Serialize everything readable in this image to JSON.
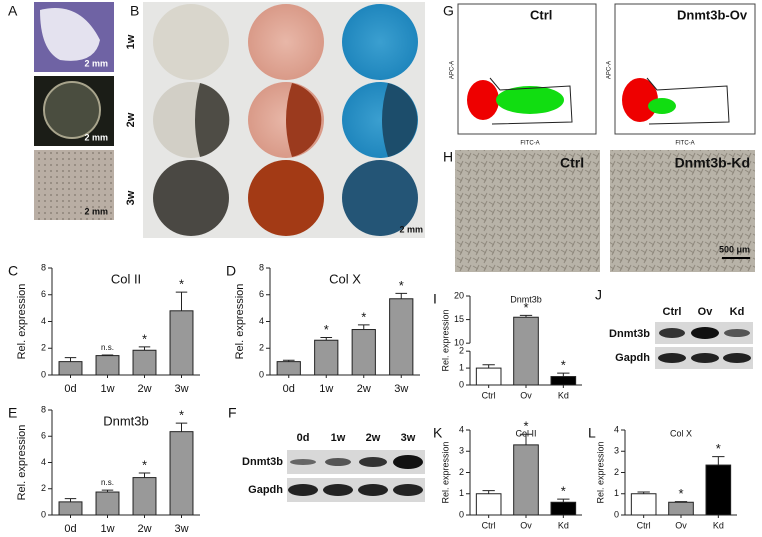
{
  "panels": {
    "A": {
      "label": "A",
      "scale_bars": [
        "2 mm",
        "2 mm",
        "2 mm"
      ]
    },
    "B": {
      "label": "B",
      "rows": [
        "1w",
        "2w",
        "3w"
      ],
      "scale_bar": "2 mm"
    },
    "G": {
      "label": "G",
      "plots": [
        {
          "title": "Ctrl",
          "x_label": "FITC-A",
          "y_label": "APC-A"
        },
        {
          "title": "Dnmt3b-Ov",
          "x_label": "FITC-A",
          "y_label": "APC-A"
        }
      ]
    },
    "H": {
      "label": "H",
      "images": [
        "Ctrl",
        "Dnmt3b-Kd"
      ],
      "scale_bar": "500 μm"
    },
    "F": {
      "label": "F",
      "lanes": [
        "0d",
        "1w",
        "2w",
        "3w"
      ],
      "bands": [
        "Dnmt3b",
        "Gapdh"
      ]
    },
    "J": {
      "label": "J",
      "lanes": [
        "Ctrl",
        "Ov",
        "Kd"
      ],
      "bands": [
        "Dnmt3b",
        "Gapdh"
      ]
    }
  },
  "chart_data": [
    {
      "type": "bar",
      "panel": "C",
      "title": "Col II",
      "y_label": "Rel. expression",
      "categories": [
        "0d",
        "1w",
        "2w",
        "3w"
      ],
      "values": [
        1,
        1.45,
        1.85,
        4.8
      ],
      "errors": [
        0.3,
        0.05,
        0.25,
        1.4
      ],
      "annotations": [
        null,
        "n.s.",
        "*",
        "*"
      ],
      "color": "#999999",
      "ylim": [
        0,
        8
      ],
      "yticks": [
        0,
        2,
        4,
        6,
        8
      ]
    },
    {
      "type": "bar",
      "panel": "D",
      "title": "Col X",
      "y_label": "Rel. expression",
      "categories": [
        "0d",
        "1w",
        "2w",
        "3w"
      ],
      "values": [
        1,
        2.6,
        3.4,
        5.7
      ],
      "errors": [
        0.1,
        0.2,
        0.35,
        0.4
      ],
      "annotations": [
        null,
        "*",
        "*",
        "*"
      ],
      "color": "#999999",
      "ylim": [
        0,
        8
      ],
      "yticks": [
        0,
        2,
        4,
        6,
        8
      ]
    },
    {
      "type": "bar",
      "panel": "E",
      "title": "Dnmt3b",
      "y_label": "Rel. expression",
      "categories": [
        "0d",
        "1w",
        "2w",
        "3w"
      ],
      "values": [
        1,
        1.75,
        2.85,
        6.35
      ],
      "errors": [
        0.25,
        0.15,
        0.35,
        0.65
      ],
      "annotations": [
        null,
        "n.s.",
        "*",
        "*"
      ],
      "color": "#999999",
      "ylim": [
        0,
        8
      ],
      "yticks": [
        0,
        2,
        4,
        6,
        8
      ]
    },
    {
      "type": "bar",
      "panel": "I",
      "title": "Dnmt3b",
      "y_label": "Rel. expression",
      "categories": [
        "Ctrl",
        "Ov",
        "Kd"
      ],
      "values": [
        1,
        15.5,
        0.5
      ],
      "errors": [
        0.2,
        0.4,
        0.2
      ],
      "annotations": [
        null,
        "*",
        "*"
      ],
      "colors": [
        "#ffffff",
        "#999999",
        "#000000"
      ],
      "ylim": [
        0,
        20
      ],
      "axis_break": [
        2,
        10
      ],
      "yticks": [
        0,
        1,
        2,
        10,
        15,
        20
      ]
    },
    {
      "type": "bar",
      "panel": "K",
      "title": "Col II",
      "y_label": "Rel. expression",
      "categories": [
        "Ctrl",
        "Ov",
        "Kd"
      ],
      "values": [
        1,
        3.3,
        0.6
      ],
      "errors": [
        0.15,
        0.5,
        0.15
      ],
      "annotations": [
        null,
        "*",
        "*"
      ],
      "colors": [
        "#ffffff",
        "#999999",
        "#000000"
      ],
      "ylim": [
        0,
        4
      ],
      "yticks": [
        0,
        1,
        2,
        3,
        4
      ]
    },
    {
      "type": "bar",
      "panel": "L",
      "title": "Col X",
      "y_label": "Rel. expression",
      "categories": [
        "Ctrl",
        "Ov",
        "Kd"
      ],
      "values": [
        1,
        0.6,
        2.35
      ],
      "errors": [
        0.08,
        0.03,
        0.4
      ],
      "annotations": [
        null,
        "*",
        "*"
      ],
      "colors": [
        "#ffffff",
        "#999999",
        "#000000"
      ],
      "ylim": [
        0,
        4
      ],
      "yticks": [
        0,
        1,
        2,
        3,
        4
      ]
    }
  ]
}
